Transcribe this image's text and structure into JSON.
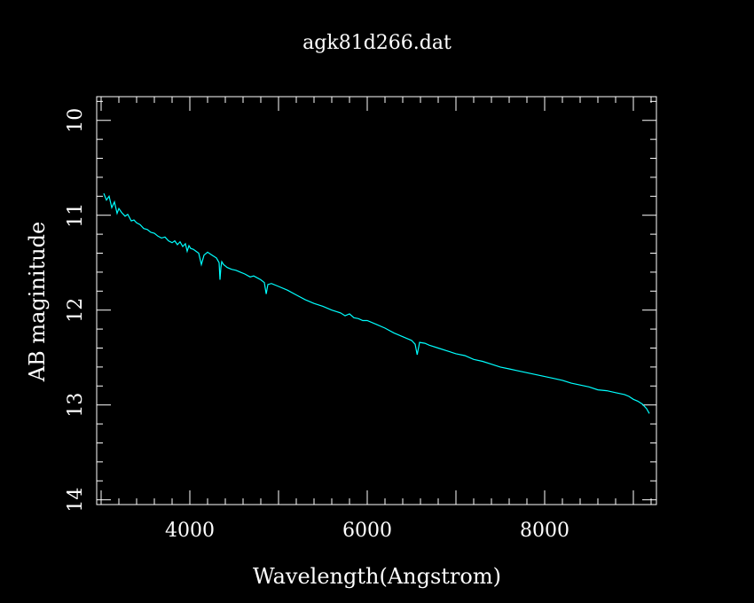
{
  "colors": {
    "background": "#000000",
    "axes": "#ffffff",
    "series": "#00ffff"
  },
  "chart_data": {
    "type": "line",
    "title": "agk81d266.dat",
    "xlabel": "Wavelength(Angstrom)",
    "ylabel": "AB maginitude",
    "xlim": [
      2950,
      9260
    ],
    "ylim": [
      14.05,
      9.75
    ],
    "y_inverted": true,
    "grid": false,
    "x_major_ticks": [
      4000,
      6000,
      8000
    ],
    "x_tick_labels": [
      "4000",
      "6000",
      "8000"
    ],
    "x_minor_step": 200,
    "y_major_ticks": [
      10,
      11,
      12,
      13,
      14
    ],
    "y_tick_labels": [
      "10",
      "11",
      "12",
      "13",
      "14"
    ],
    "y_minor_step": 0.2,
    "series": [
      {
        "x": [
          3030,
          3060,
          3090,
          3120,
          3150,
          3180,
          3200,
          3230,
          3270,
          3300,
          3340,
          3370,
          3400,
          3440,
          3480,
          3520,
          3560,
          3600,
          3640,
          3680,
          3720,
          3760,
          3800,
          3830,
          3860,
          3890,
          3920,
          3950,
          3970,
          3990,
          4010,
          4040,
          4070,
          4100,
          4130,
          4160,
          4200,
          4250,
          4300,
          4330,
          4340,
          4350,
          4360,
          4380,
          4420,
          4470,
          4520,
          4570,
          4620,
          4680,
          4720,
          4760,
          4800,
          4840,
          4861,
          4880,
          4920,
          5000,
          5100,
          5200,
          5300,
          5400,
          5500,
          5600,
          5700,
          5750,
          5800,
          5850,
          5900,
          5950,
          6000,
          6100,
          6200,
          6300,
          6400,
          6500,
          6540,
          6563,
          6590,
          6650,
          6700,
          6800,
          6900,
          7000,
          7100,
          7200,
          7300,
          7400,
          7500,
          7600,
          7700,
          7800,
          7900,
          8000,
          8100,
          8200,
          8300,
          8400,
          8500,
          8600,
          8700,
          8800,
          8900,
          8950,
          9000,
          9050,
          9100,
          9150,
          9180
        ],
        "y": [
          10.77,
          10.84,
          10.8,
          10.92,
          10.86,
          10.98,
          10.93,
          10.97,
          11.01,
          10.99,
          11.06,
          11.05,
          11.08,
          11.1,
          11.14,
          11.15,
          11.18,
          11.19,
          11.22,
          11.24,
          11.23,
          11.27,
          11.29,
          11.27,
          11.31,
          11.28,
          11.33,
          11.3,
          11.38,
          11.32,
          11.35,
          11.36,
          11.38,
          11.4,
          11.52,
          11.42,
          11.39,
          11.42,
          11.45,
          11.5,
          11.68,
          11.55,
          11.49,
          11.52,
          11.55,
          11.57,
          11.58,
          11.6,
          11.62,
          11.65,
          11.64,
          11.66,
          11.68,
          11.71,
          11.83,
          11.73,
          11.72,
          11.75,
          11.79,
          11.84,
          11.89,
          11.93,
          11.96,
          12.0,
          12.03,
          12.06,
          12.04,
          12.08,
          12.09,
          12.11,
          12.11,
          12.15,
          12.19,
          12.24,
          12.28,
          12.32,
          12.36,
          12.47,
          12.34,
          12.35,
          12.37,
          12.4,
          12.43,
          12.46,
          12.48,
          12.52,
          12.54,
          12.57,
          12.6,
          12.62,
          12.64,
          12.66,
          12.68,
          12.7,
          12.72,
          12.74,
          12.77,
          12.79,
          12.81,
          12.84,
          12.85,
          12.87,
          12.89,
          12.91,
          12.94,
          12.96,
          12.99,
          13.04,
          13.09
        ]
      }
    ]
  }
}
